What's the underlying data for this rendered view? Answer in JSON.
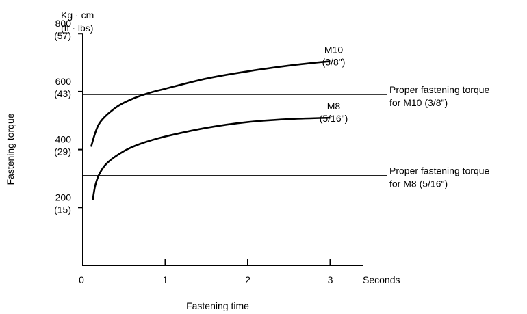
{
  "chart_data": {
    "type": "line",
    "title": "",
    "unit_line1": "Kg · cm",
    "unit_line2": "(ft · lbs)",
    "ylabel": "Fastening torque",
    "xlabel": "Fastening time",
    "x_unit_label": "Seconds",
    "xlim": [
      0,
      3.4
    ],
    "ylim": [
      0,
      800
    ],
    "x_ticks": [
      {
        "value": 0,
        "label": "0"
      },
      {
        "value": 1,
        "label": "1"
      },
      {
        "value": 2,
        "label": "2"
      },
      {
        "value": 3,
        "label": "3"
      }
    ],
    "y_ticks": [
      {
        "value": 200,
        "label": "200",
        "sub": "(15)"
      },
      {
        "value": 400,
        "label": "400",
        "sub": "(29)"
      },
      {
        "value": 600,
        "label": "600",
        "sub": "(43)"
      },
      {
        "value": 800,
        "label": "800",
        "sub": "(57)"
      }
    ],
    "series": [
      {
        "name": "M10",
        "sub": "(3/8\")",
        "x": [
          0.1,
          0.2,
          0.4,
          0.6,
          0.8,
          1.0,
          1.5,
          2.0,
          2.5,
          3.0
        ],
        "y": [
          410,
          490,
          545,
          575,
          595,
          610,
          645,
          670,
          690,
          705
        ]
      },
      {
        "name": "M8",
        "sub": "(5/16\")",
        "x": [
          0.12,
          0.15,
          0.2,
          0.3,
          0.5,
          0.7,
          1.0,
          1.5,
          2.0,
          2.5,
          3.0
        ],
        "y": [
          225,
          275,
          315,
          355,
          395,
          420,
          445,
          475,
          495,
          505,
          510
        ]
      }
    ],
    "reference_lines": [
      {
        "y": 590,
        "label_line1": "Proper fastening torque",
        "label_line2": "for M10 (3/8\")"
      },
      {
        "y": 310,
        "label_line1": "Proper fastening torque",
        "label_line2": "for M8 (5/16\")"
      }
    ],
    "grid": false,
    "legend": "none"
  }
}
